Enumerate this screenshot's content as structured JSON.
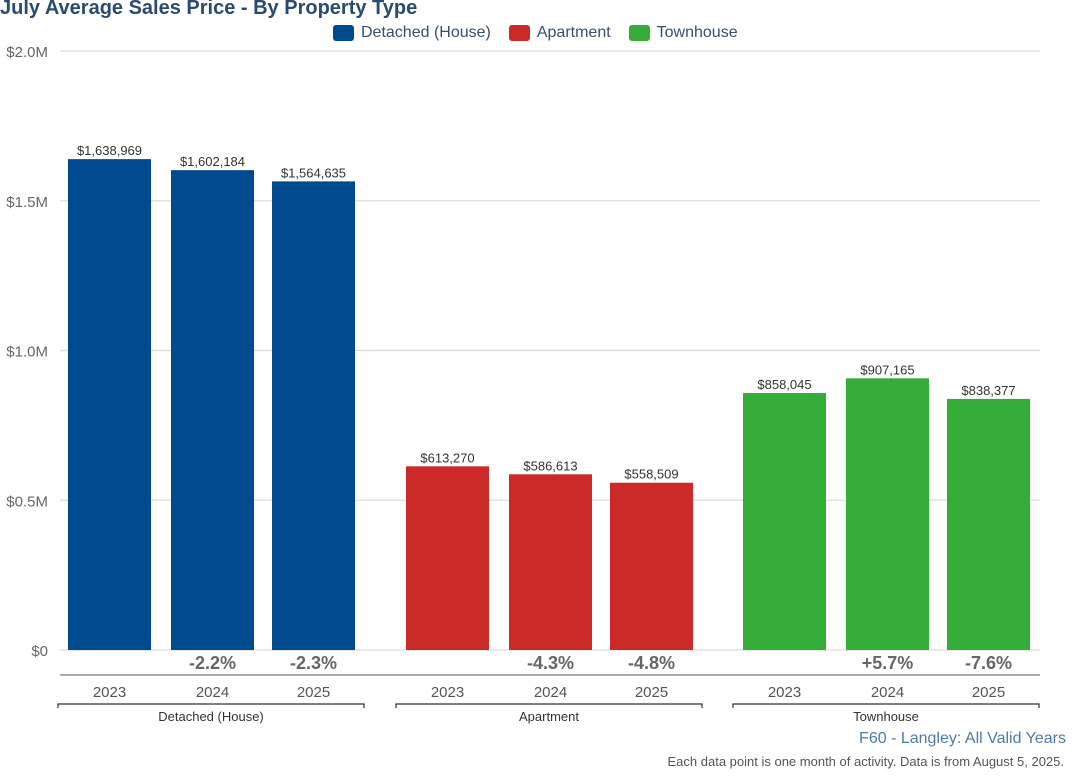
{
  "chart_data": {
    "type": "bar",
    "title": "July Average Sales Price - By Property Type",
    "xlabel": "",
    "ylabel": "",
    "ylim": [
      0,
      2000000
    ],
    "yticks": [
      {
        "value": 0,
        "label": "$0"
      },
      {
        "value": 500000,
        "label": "$0.5M"
      },
      {
        "value": 1000000,
        "label": "$1.0M"
      },
      {
        "value": 1500000,
        "label": "$1.5M"
      },
      {
        "value": 2000000,
        "label": "$2.0M"
      }
    ],
    "grid": true,
    "legend_position": "top-center",
    "categories": [
      "2023",
      "2024",
      "2025"
    ],
    "groups": [
      {
        "name": "Detached (House)",
        "color": "#004a8f",
        "years": [
          "2023",
          "2024",
          "2025"
        ],
        "values": [
          1638969,
          1602184,
          1564635
        ],
        "value_labels": [
          "$1,638,969",
          "$1,602,184",
          "$1,564,635"
        ],
        "change_labels": [
          "",
          "-2.2%",
          "-2.3%"
        ]
      },
      {
        "name": "Apartment",
        "color": "#cc2929",
        "years": [
          "2023",
          "2024",
          "2025"
        ],
        "values": [
          613270,
          586613,
          558509
        ],
        "value_labels": [
          "$613,270",
          "$586,613",
          "$558,509"
        ],
        "change_labels": [
          "",
          "-4.3%",
          "-4.8%"
        ]
      },
      {
        "name": "Townhouse",
        "color": "#33ad38",
        "years": [
          "2023",
          "2024",
          "2025"
        ],
        "values": [
          858045,
          907165,
          838377
        ],
        "value_labels": [
          "$858,045",
          "$907,165",
          "$838,377"
        ],
        "change_labels": [
          "",
          "+5.7%",
          "-7.6%"
        ]
      }
    ]
  },
  "legend": [
    {
      "label": "Detached (House)",
      "color": "#004a8f"
    },
    {
      "label": "Apartment",
      "color": "#cc2929"
    },
    {
      "label": "Townhouse",
      "color": "#33ad38"
    }
  ],
  "footer": {
    "source": "F60 - Langley: All Valid Years",
    "note": "Each data point is one month of activity. Data is from August 5, 2025."
  }
}
